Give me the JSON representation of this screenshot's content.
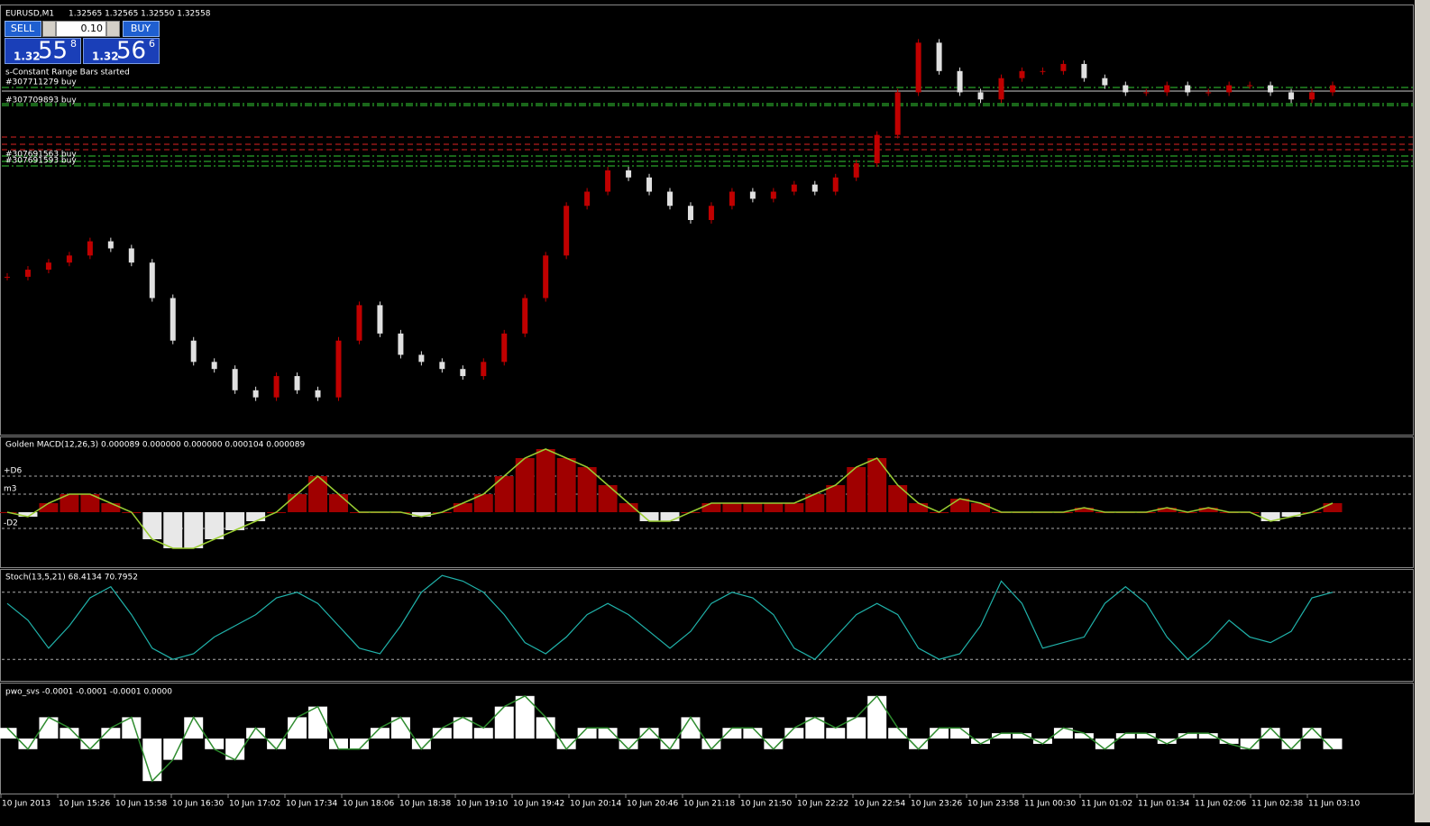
{
  "header": {
    "symbol": "EURUSD,M1",
    "ohlc": "1.32565 1.32565 1.32550 1.32558"
  },
  "trade_panel": {
    "sell": "SELL",
    "buy": "BUY",
    "lot": "0.10",
    "bid": {
      "big": "1.32",
      "pips": "55",
      "frac": "8"
    },
    "ask": {
      "big": "1.32",
      "pips": "56",
      "frac": "6"
    }
  },
  "message": "s-Constant Range Bars started",
  "orders": [
    "#307711279 buy",
    "#307709893 buy",
    "#307691563 buy",
    "#307691593 buy"
  ],
  "time_axis": [
    "10 Jun 2013",
    "10 Jun 15:26",
    "10 Jun 15:58",
    "10 Jun 16:30",
    "10 Jun 17:02",
    "10 Jun 17:34",
    "10 Jun 18:06",
    "10 Jun 18:38",
    "10 Jun 19:10",
    "10 Jun 19:42",
    "10 Jun 20:14",
    "10 Jun 20:46",
    "10 Jun 21:18",
    "10 Jun 21:50",
    "10 Jun 22:22",
    "10 Jun 22:54",
    "10 Jun 23:26",
    "10 Jun 23:58",
    "11 Jun 00:30",
    "11 Jun 01:02",
    "11 Jun 01:34",
    "11 Jun 02:06",
    "11 Jun 02:38",
    "11 Jun 03:10"
  ],
  "chart_data": [
    {
      "type": "candlestick",
      "up_color": "#c00000",
      "down_color": "#e0e0e0",
      "ylim": [
        1.3215,
        1.3275
      ],
      "values": [
        1.3237,
        1.3238,
        1.3239,
        1.324,
        1.3242,
        1.3241,
        1.3239,
        1.3234,
        1.3228,
        1.3225,
        1.3224,
        1.3221,
        1.322,
        1.3223,
        1.3221,
        1.322,
        1.3228,
        1.3233,
        1.3229,
        1.3226,
        1.3225,
        1.3224,
        1.3223,
        1.3225,
        1.3229,
        1.3234,
        1.324,
        1.3247,
        1.3249,
        1.3252,
        1.3251,
        1.3249,
        1.3247,
        1.3245,
        1.3247,
        1.3249,
        1.3248,
        1.3249,
        1.325,
        1.3249,
        1.3251,
        1.3253,
        1.3257,
        1.3263,
        1.327,
        1.3266,
        1.3263,
        1.3262,
        1.3265,
        1.3266,
        1.3266,
        1.3267,
        1.3265,
        1.3264,
        1.3263,
        1.3263,
        1.3264,
        1.3263,
        1.3263,
        1.3264,
        1.3264,
        1.3263,
        1.3262,
        1.3263,
        1.3264
      ]
    },
    {
      "type": "histogram",
      "title": "Golden MACD(12,26,3) 0.000089 0.000000 0.000000 0.000104 0.000089",
      "ylim": [
        -0.0006,
        0.00083
      ],
      "yticks": [
        {
          "value": 0.0004,
          "label": "+D6"
        },
        {
          "value": 0.0002,
          "label": "m3"
        },
        {
          "value": -0.00018,
          "label": "-D2"
        }
      ],
      "pos_color": "#a00000",
      "neg_color": "#e8e8e8",
      "line_color": "#9acd32",
      "values": [
        0,
        -5e-05,
        0.0001,
        0.0002,
        0.0002,
        0.0001,
        0,
        -0.0003,
        -0.0004,
        -0.0004,
        -0.0003,
        -0.0002,
        -0.0001,
        0,
        0.0002,
        0.0004,
        0.0002,
        0,
        0,
        0,
        -5e-05,
        0,
        0.0001,
        0.0002,
        0.0004,
        0.0006,
        0.0007,
        0.0006,
        0.0005,
        0.0003,
        0.0001,
        -0.0001,
        -0.0001,
        0,
        0.0001,
        0.0001,
        0.0001,
        0.0001,
        0.0001,
        0.0002,
        0.0003,
        0.0005,
        0.0006,
        0.0003,
        0.0001,
        0,
        0.00015,
        0.0001,
        0,
        0,
        0,
        0,
        5e-05,
        0,
        0,
        0,
        5e-05,
        0,
        5e-05,
        0,
        0,
        -0.0001,
        -5e-05,
        0,
        0.0001
      ]
    },
    {
      "type": "line",
      "title": "Stoch(13,5,21) 68.4134 70.7952",
      "ylim": [
        0,
        100
      ],
      "levels": [
        20,
        80
      ],
      "color": "#20b2aa",
      "values": [
        70,
        55,
        30,
        50,
        75,
        85,
        60,
        30,
        20,
        25,
        40,
        50,
        60,
        75,
        80,
        70,
        50,
        30,
        25,
        50,
        80,
        95,
        90,
        80,
        60,
        35,
        25,
        40,
        60,
        70,
        60,
        45,
        30,
        45,
        70,
        80,
        75,
        60,
        30,
        20,
        40,
        60,
        70,
        60,
        30,
        20,
        25,
        50,
        90,
        70,
        30,
        35,
        40,
        70,
        85,
        70,
        40,
        20,
        35,
        55,
        40,
        35,
        45,
        75,
        80
      ]
    },
    {
      "type": "histogram",
      "title": "pwo_svs -0.0001 -0.0001 -0.0001 0.0000",
      "ylim": [
        -0.0005,
        0.0005
      ],
      "pos_color": "#ffffff",
      "neg_color": "#ffffff",
      "line_color": "#2e8b2e",
      "values": [
        0.0001,
        -0.0001,
        0.0002,
        0.0001,
        -0.0001,
        0.0001,
        0.0002,
        -0.0004,
        -0.0002,
        0.0002,
        -0.0001,
        -0.0002,
        0.0001,
        -0.0001,
        0.0002,
        0.0003,
        -0.0001,
        -0.0001,
        0.0001,
        0.0002,
        -0.0001,
        0.0001,
        0.0002,
        0.0001,
        0.0003,
        0.0004,
        0.0002,
        -0.0001,
        0.0001,
        0.0001,
        -0.0001,
        0.0001,
        -0.0001,
        0.0002,
        -0.0001,
        0.0001,
        0.0001,
        -0.0001,
        0.0001,
        0.0002,
        0.0001,
        0.0002,
        0.0004,
        0.0001,
        -0.0001,
        0.0001,
        0.0001,
        -5e-05,
        5e-05,
        5e-05,
        -5e-05,
        0.0001,
        5e-05,
        -0.0001,
        5e-05,
        5e-05,
        -5e-05,
        5e-05,
        5e-05,
        -5e-05,
        -0.0001,
        0.0001,
        -0.0001,
        0.0001,
        -0.0001
      ]
    }
  ]
}
